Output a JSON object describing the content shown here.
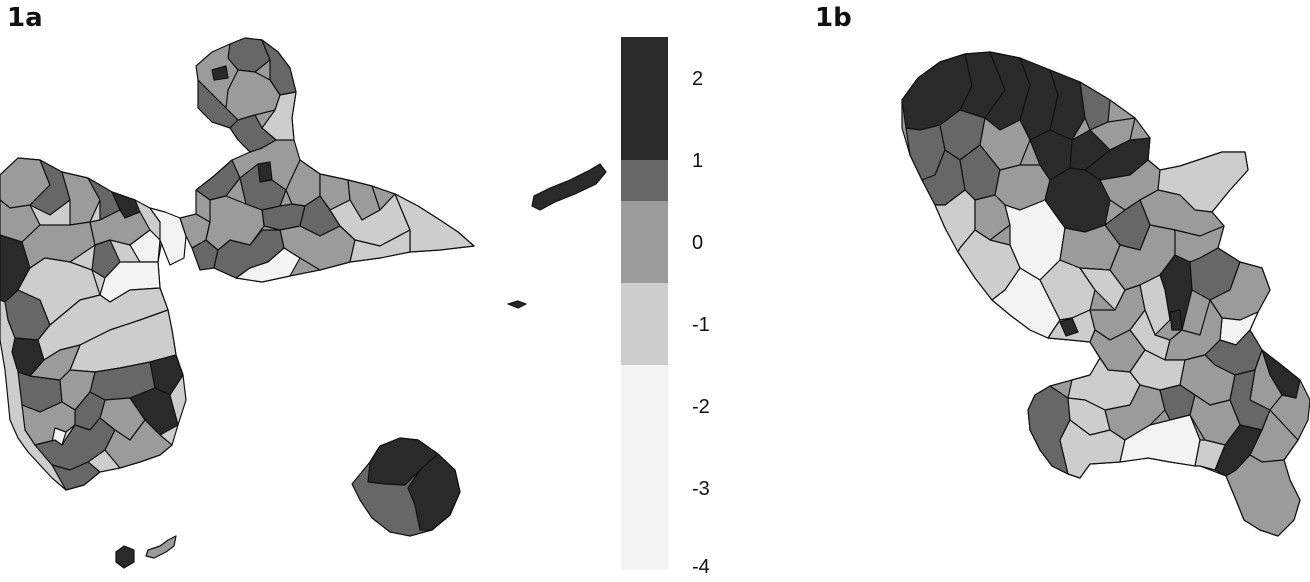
{
  "panels": [
    {
      "label": "1a"
    },
    {
      "label": "1b"
    }
  ],
  "legend": {
    "ticks": [
      "2",
      "1",
      "0",
      "-1",
      "-2",
      "-3",
      "-4"
    ],
    "bins": [
      {
        "from": 1,
        "to": 2.5,
        "color": "#2a2a2a"
      },
      {
        "from": 0.5,
        "to": 1,
        "color": "#676767"
      },
      {
        "from": -0.5,
        "to": 0.5,
        "color": "#9b9b9b"
      },
      {
        "from": -1.5,
        "to": -0.5,
        "color": "#cdcdcd"
      },
      {
        "from": -4,
        "to": -1.5,
        "color": "#f3f3f3"
      }
    ]
  },
  "colors": {
    "very_dark": "#2a2a2a",
    "dark": "#676767",
    "medium": "#9b9b9b",
    "light": "#cdcdcd",
    "very_light": "#f3f3f3",
    "border": "#111111"
  }
}
